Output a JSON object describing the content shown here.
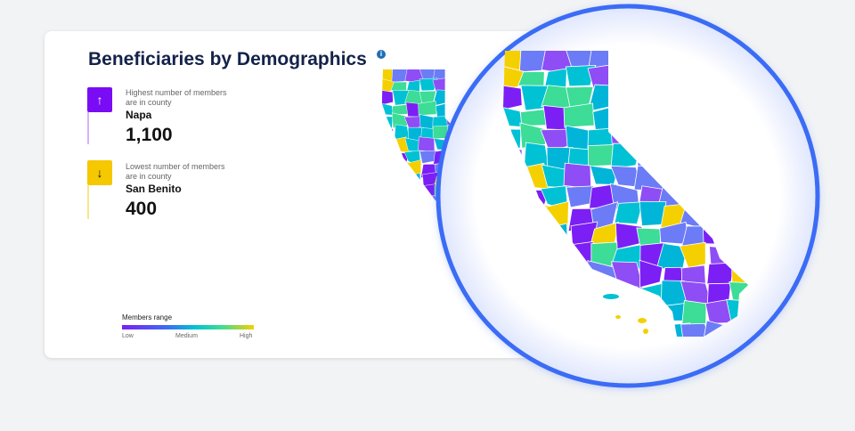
{
  "header": {
    "title": "Beneficiaries by Demographics"
  },
  "highest": {
    "label": "Highest number of members are in county",
    "county": "Napa",
    "value": "1,100"
  },
  "lowest": {
    "label": "Lowest number of members are in county",
    "county": "San Benito",
    "value": "400"
  },
  "legend": {
    "title": "Members range",
    "low": "Low",
    "medium": "Medium",
    "high": "High"
  }
}
